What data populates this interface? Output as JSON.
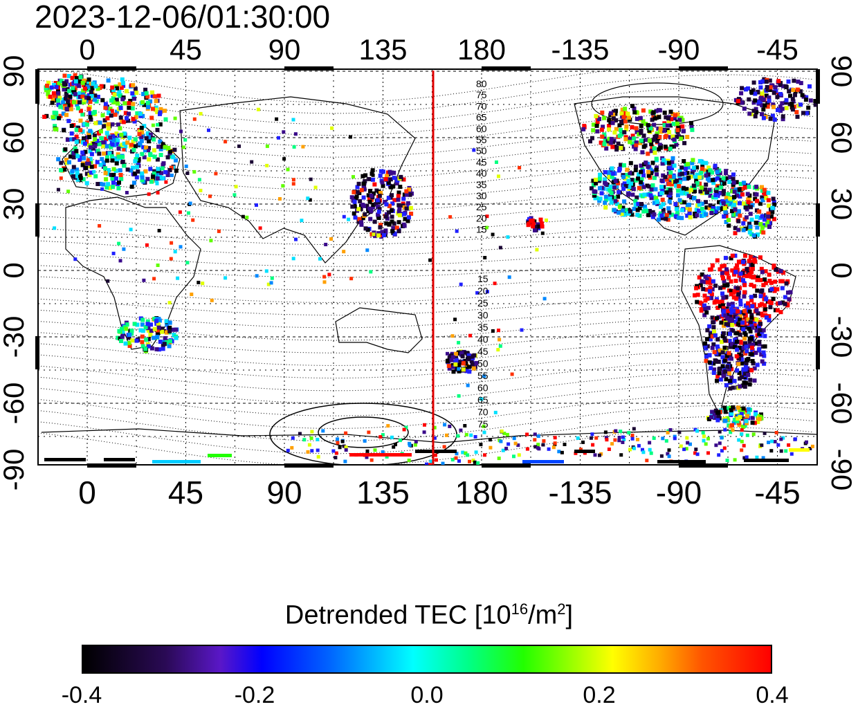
{
  "timestamp": "2023-12-06/01:30:00",
  "map": {
    "lon_top_labels": [
      "0",
      "45",
      "90",
      "135",
      "180",
      "-135",
      "-90",
      "-45"
    ],
    "lon_bottom_labels": [
      "0",
      "45",
      "90",
      "135",
      "180",
      "-135",
      "-90",
      "-45"
    ],
    "lat_left_labels": [
      "90",
      "60",
      "30",
      "0",
      "-30",
      "-60",
      "-90"
    ],
    "lat_right_labels": [
      "90",
      "60",
      "30",
      "0",
      "-30",
      "-60",
      "-90"
    ],
    "terminator_longitude": 157,
    "contour_labels_north": [
      "80",
      "75",
      "70",
      "65",
      "60",
      "55",
      "50",
      "45",
      "40",
      "35",
      "30",
      "25",
      "20",
      "15"
    ],
    "contour_labels_south": [
      "15",
      "20",
      "25",
      "30",
      "35",
      "40",
      "45",
      "50",
      "55",
      "60",
      "65",
      "70",
      "75"
    ]
  },
  "colorbar": {
    "title_main": "Detrended TEC  [10",
    "title_sup": "16",
    "title_mid": "/m",
    "title_sup2": "2",
    "title_end": "]",
    "tick_labels": [
      "-0.4",
      "-0.2",
      "0.0",
      "0.2",
      "0.4"
    ],
    "colors": [
      "#000000",
      "#0000ff",
      "#00ffff",
      "#00ff00",
      "#ffff00",
      "#ff0000"
    ]
  }
}
